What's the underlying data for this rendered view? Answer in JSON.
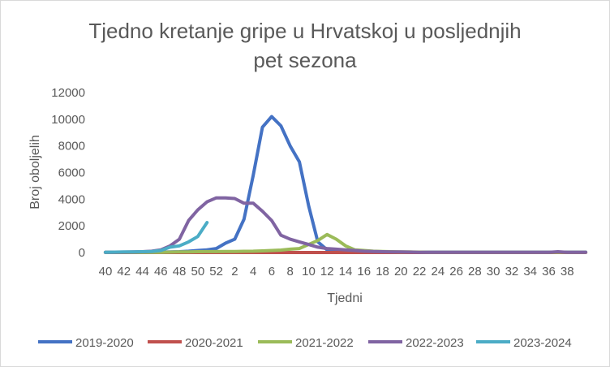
{
  "chart_data": {
    "type": "line",
    "title_line1": "Tjedno kretanje gripe u Hrvatskoj u posljednjih",
    "title_line2": "pet sezona",
    "xlabel": "Tjedni",
    "ylabel": "Broj oboljelih",
    "ylim": [
      0,
      12000
    ],
    "yticks": [
      "0",
      "2000",
      "4000",
      "6000",
      "8000",
      "10000",
      "12000"
    ],
    "x_labels": [
      "40",
      "42",
      "44",
      "46",
      "48",
      "50",
      "52",
      "2",
      "4",
      "6",
      "8",
      "10",
      "12",
      "14",
      "16",
      "18",
      "20",
      "22",
      "24",
      "26",
      "28",
      "30",
      "32",
      "34",
      "36",
      "38"
    ],
    "grid": false,
    "legend_position": "bottom",
    "series": [
      {
        "name": "2019-2020",
        "color": "#4472c4",
        "values": [
          20,
          20,
          20,
          20,
          20,
          20,
          30,
          40,
          60,
          100,
          150,
          200,
          300,
          700,
          1000,
          2500,
          5800,
          9400,
          10200,
          9500,
          8000,
          6800,
          3500,
          800,
          200,
          100,
          80,
          60,
          50,
          40,
          30,
          30,
          30,
          30,
          30,
          30,
          30,
          30,
          30,
          30,
          30,
          30,
          30,
          30,
          30,
          30,
          30,
          30,
          30,
          30,
          30,
          30,
          30
        ]
      },
      {
        "name": "2020-2021",
        "color": "#c0504d",
        "values": [
          0,
          0,
          0,
          0,
          0,
          0,
          0,
          0,
          0,
          0,
          0,
          0,
          0,
          0,
          0,
          0,
          0,
          0,
          0,
          0,
          0,
          0,
          0,
          0,
          0,
          0,
          0,
          0,
          0,
          0,
          0,
          0,
          0,
          0,
          0,
          0,
          0,
          0,
          0,
          0,
          0,
          0,
          0,
          0,
          0,
          0,
          0,
          0,
          0,
          0,
          0,
          0,
          0
        ]
      },
      {
        "name": "2021-2022",
        "color": "#9bbb59",
        "values": [
          10,
          10,
          10,
          10,
          10,
          20,
          20,
          30,
          40,
          50,
          60,
          70,
          70,
          80,
          80,
          90,
          100,
          120,
          150,
          180,
          250,
          300,
          600,
          900,
          1350,
          1000,
          500,
          200,
          150,
          100,
          80,
          60,
          50,
          40,
          30,
          20,
          20,
          20,
          20,
          20,
          20,
          20,
          20,
          20,
          20,
          20,
          20,
          20,
          20,
          20,
          20,
          20,
          20
        ]
      },
      {
        "name": "2022-2023",
        "color": "#8064a2",
        "values": [
          20,
          20,
          30,
          40,
          60,
          100,
          200,
          500,
          1000,
          2400,
          3200,
          3800,
          4100,
          4100,
          4050,
          3700,
          3700,
          3100,
          2400,
          1300,
          1000,
          800,
          600,
          400,
          300,
          250,
          200,
          150,
          100,
          80,
          60,
          50,
          40,
          30,
          20,
          20,
          20,
          20,
          20,
          20,
          20,
          20,
          20,
          20,
          20,
          20,
          20,
          20,
          20,
          60,
          20,
          20,
          20
        ]
      },
      {
        "name": "2023-2024",
        "color": "#4bacc6",
        "values": [
          20,
          30,
          40,
          50,
          60,
          80,
          150,
          400,
          500,
          800,
          1200,
          2250
        ]
      }
    ]
  }
}
